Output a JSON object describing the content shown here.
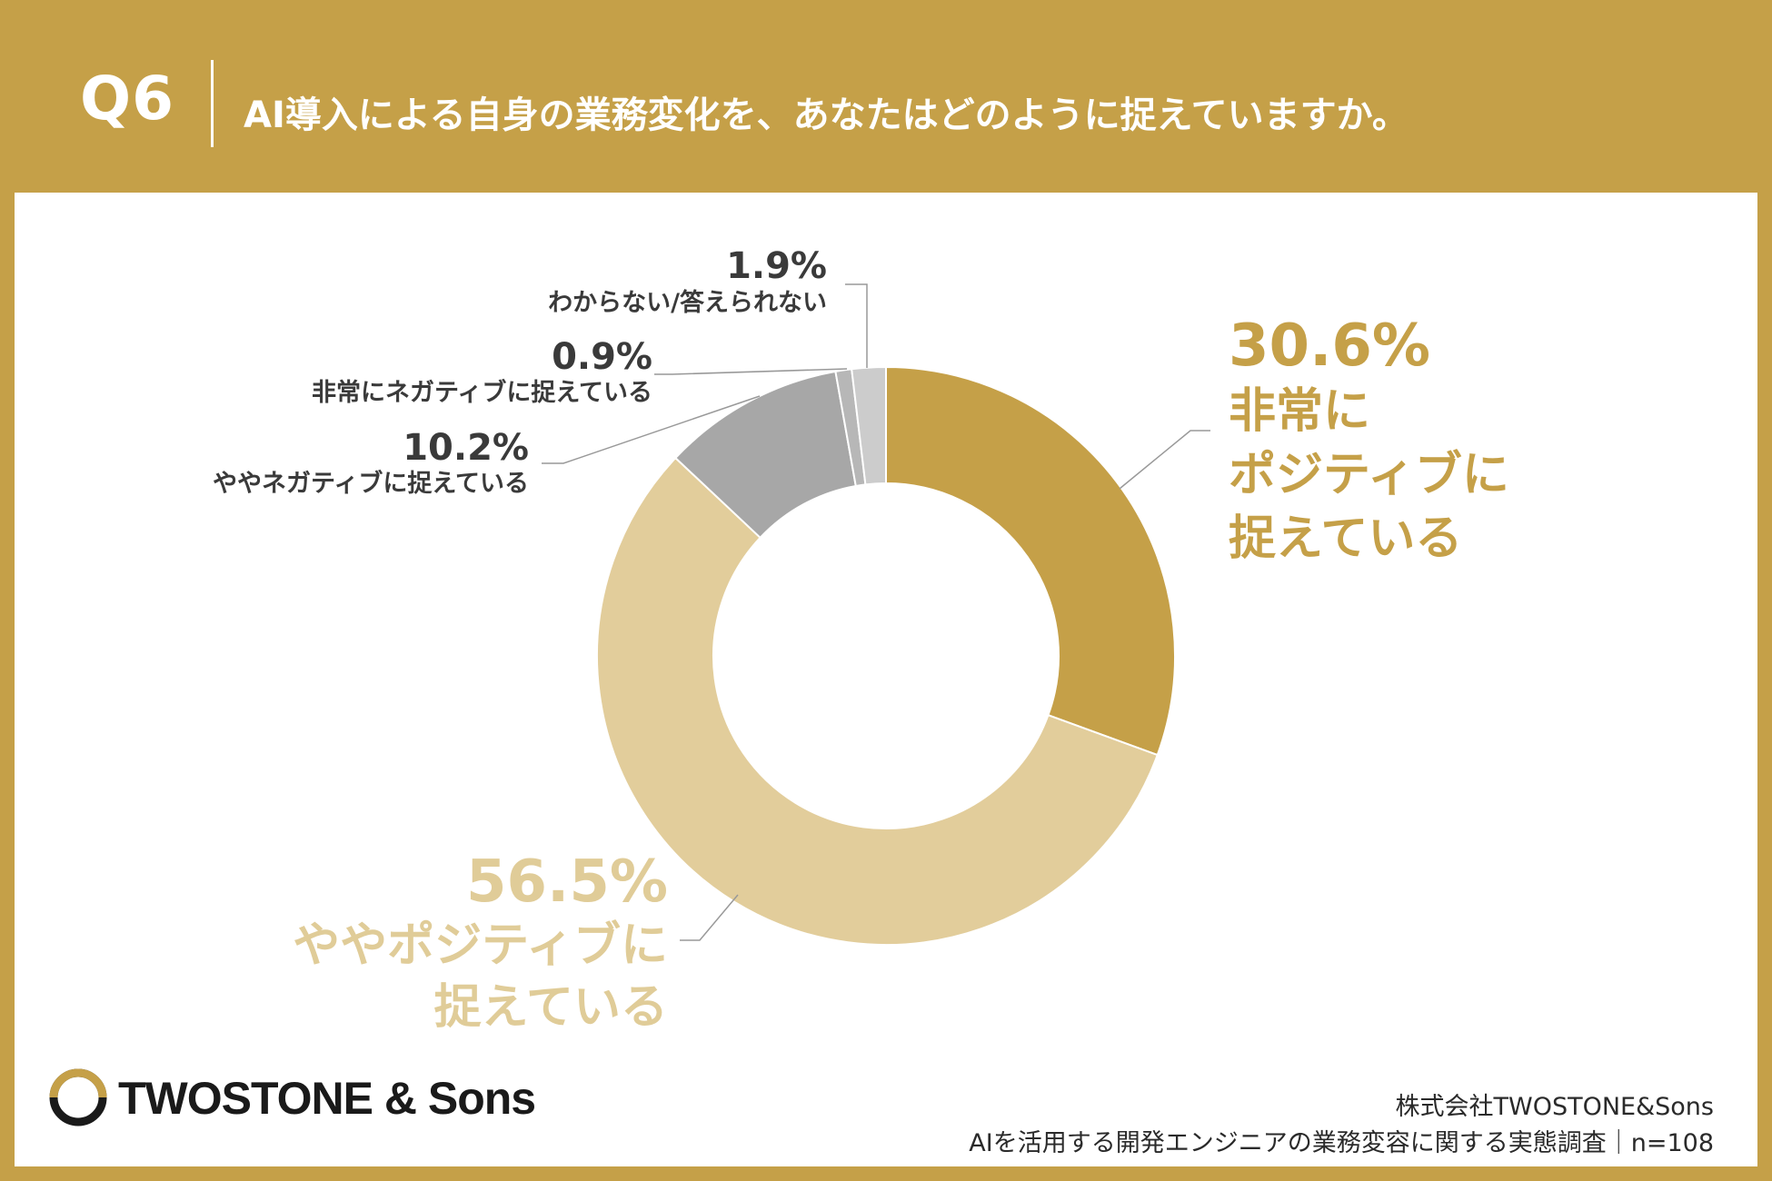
{
  "header": {
    "question_number": "Q6",
    "question_text": "AI導入による自身の業務変化を、あなたはどのように捉えていますか。"
  },
  "chart_data": {
    "type": "pie",
    "slices": [
      {
        "label": "非常にポジティブに捉えている",
        "value": 30.6,
        "display": "30.6%",
        "color": "#c5a048"
      },
      {
        "label": "ややポジティブに捉えている",
        "value": 56.5,
        "display": "56.5%",
        "color": "#e2cd9b"
      },
      {
        "label": "ややネガティブに捉えている",
        "value": 10.2,
        "display": "10.2%",
        "color": "#a7a7a7"
      },
      {
        "label": "非常にネガティブに捉えている",
        "value": 0.9,
        "display": "0.9%",
        "color": "#b7b7b7"
      },
      {
        "label": "わからない/答えられない",
        "value": 1.9,
        "display": "1.9%",
        "color": "#cccccc"
      }
    ],
    "labels": {
      "very_positive": {
        "pct": "30.6%",
        "lines": [
          "非常に",
          "ポジティブに",
          "捉えている"
        ]
      },
      "somewhat_positive": {
        "pct": "56.5%",
        "lines": [
          "ややポジティブに",
          "捉えている"
        ]
      },
      "somewhat_negative": {
        "pct": "10.2%",
        "lines": [
          "ややネガティブに捉えている"
        ]
      },
      "very_negative": {
        "pct": "0.9%",
        "lines": [
          "非常にネガティブに捉えている"
        ]
      },
      "dont_know": {
        "pct": "1.9%",
        "lines": [
          "わからない/答えられない"
        ]
      }
    }
  },
  "footer": {
    "brand": "TWOSTONE & Sons",
    "company": "株式会社TWOSTONE&Sons",
    "survey": "AIを活用する開発エンジニアの業務変容に関する実態調査｜n=108"
  },
  "colors": {
    "brand_gold": "#c5a048",
    "light_gold": "#e2cd9b",
    "label_gold_light": "#e0cc98",
    "text_dark": "#3a3a3a"
  }
}
